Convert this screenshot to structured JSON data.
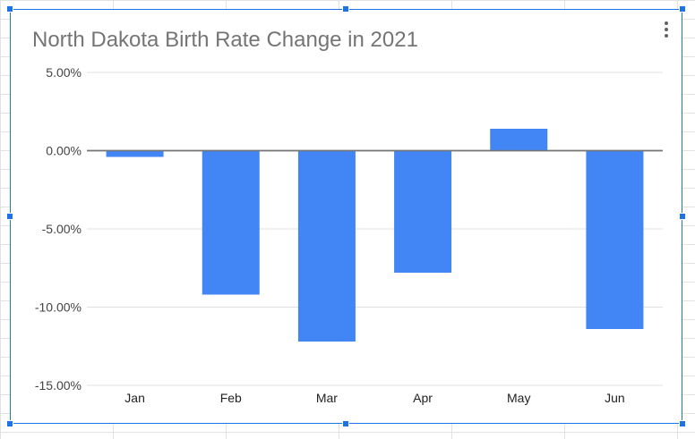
{
  "chart_data": {
    "type": "bar",
    "title": "North Dakota Birth Rate Change in 2021",
    "categories": [
      "Jan",
      "Feb",
      "Mar",
      "Apr",
      "May",
      "Jun"
    ],
    "values": [
      -0.4,
      -9.2,
      -12.2,
      -7.8,
      1.4,
      -11.4
    ],
    "ylim": [
      -15,
      5
    ],
    "yticks": [
      5,
      0,
      -5,
      -10,
      -15
    ],
    "ytick_labels": [
      "5.00%",
      "0.00%",
      "-5.00%",
      "-10.00%",
      "-15.00%"
    ],
    "xlabel": "",
    "ylabel": "",
    "grid": true,
    "legend": "none",
    "bar_color": "#4285f4"
  },
  "icons": {
    "menu": "more-vert-icon"
  }
}
